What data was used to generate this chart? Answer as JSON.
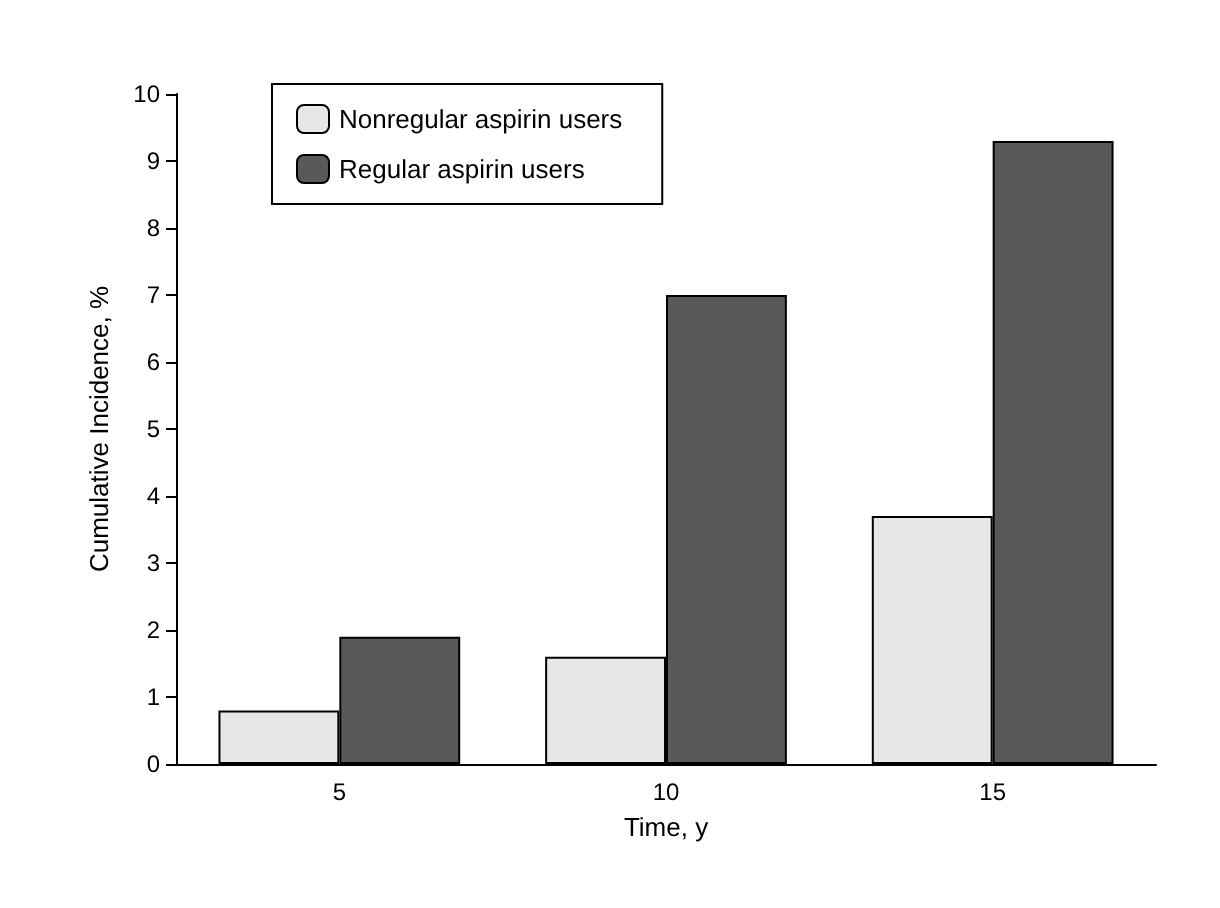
{
  "chart_data": {
    "type": "bar",
    "xlabel": "Time, y",
    "ylabel": "Cumulative Incidence, %",
    "categories": [
      "5",
      "10",
      "15"
    ],
    "series": [
      {
        "name": "Nonregular aspirin users",
        "color": "#e6e7e8",
        "values": [
          0.8,
          1.6,
          3.7
        ]
      },
      {
        "name": "Regular aspirin users",
        "color": "#58595b",
        "values": [
          1.9,
          7.0,
          9.3
        ]
      }
    ],
    "ylim": [
      0,
      10
    ],
    "yticks": [
      0,
      1,
      2,
      3,
      4,
      5,
      6,
      7,
      8,
      9,
      10
    ],
    "grid": false,
    "legend": "top left"
  }
}
